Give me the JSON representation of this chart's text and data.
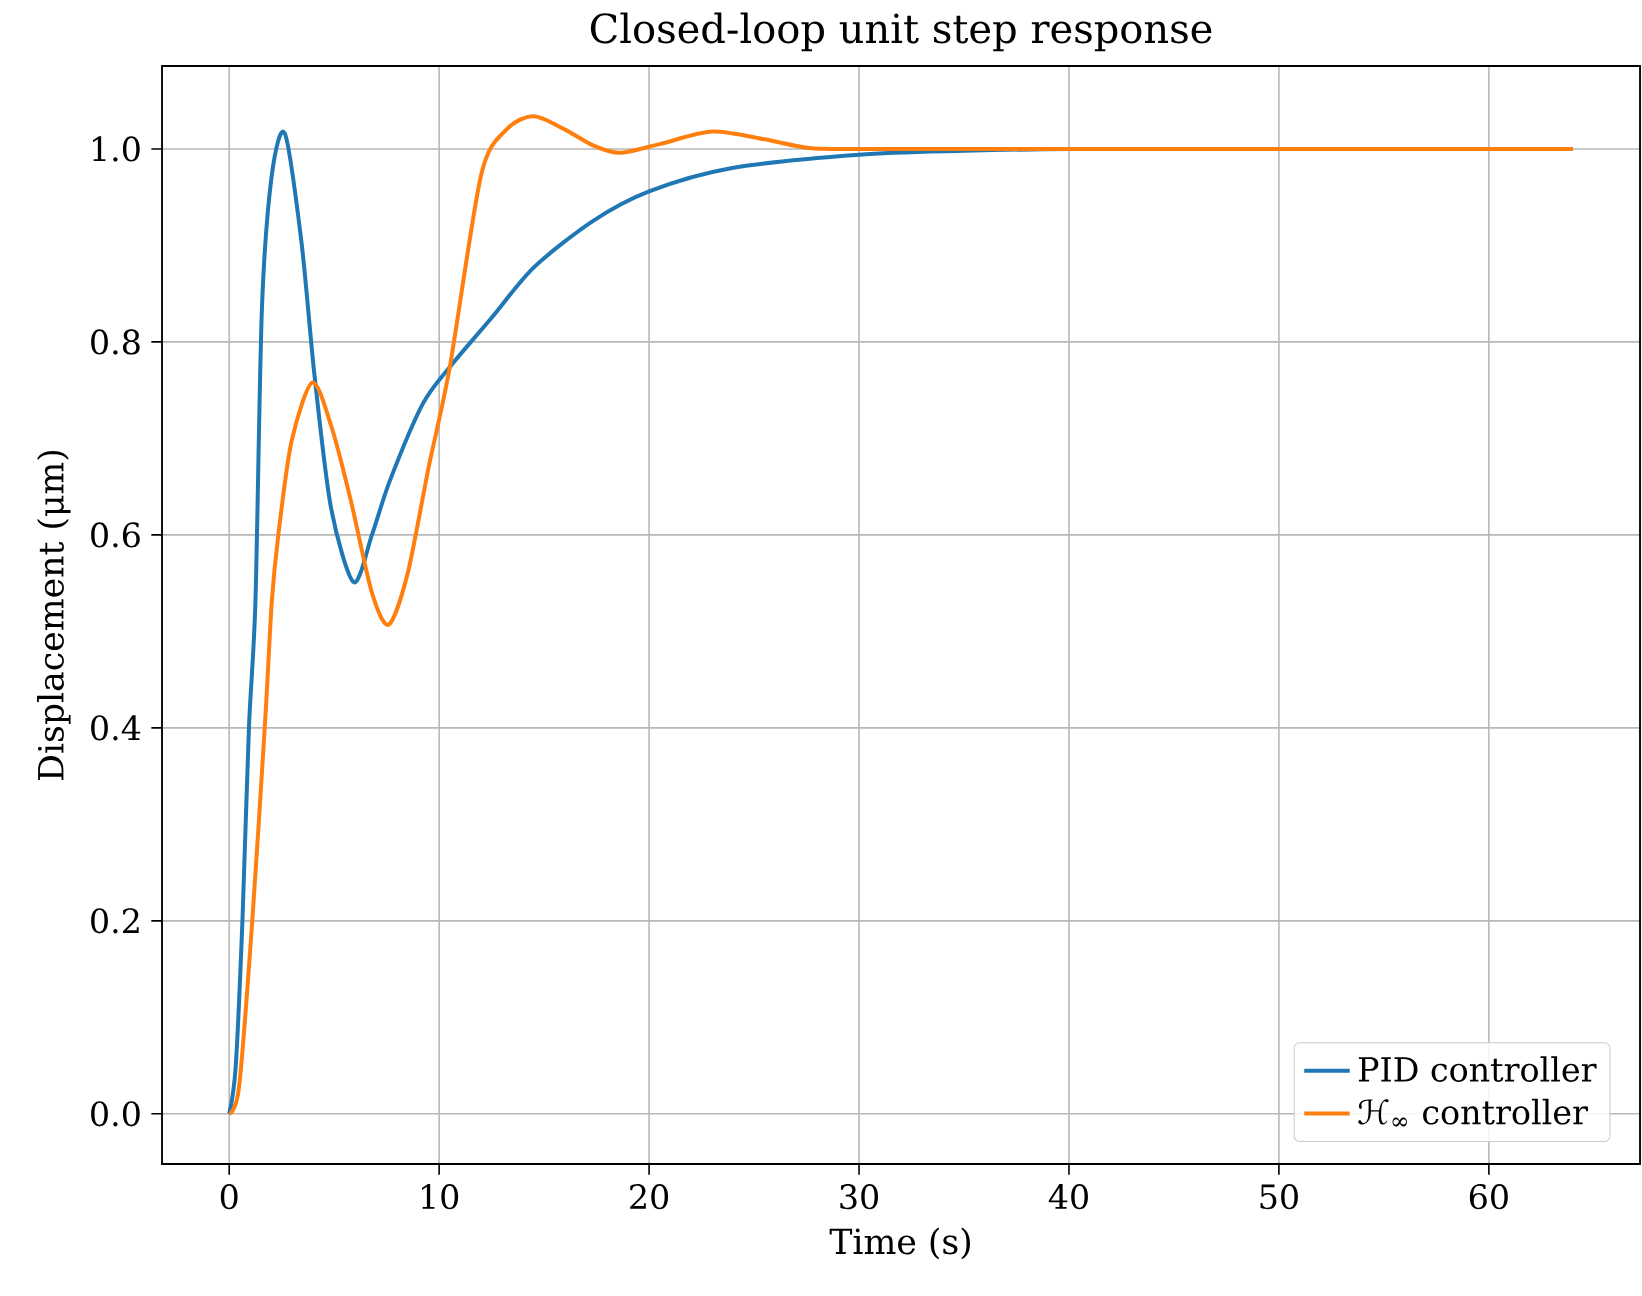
{
  "chart_data": {
    "type": "line",
    "title": "Closed-loop unit step response",
    "xlabel": "Time (s)",
    "ylabel": "Displacement (μm)",
    "xlim": [
      -3.2,
      67.2
    ],
    "ylim": [
      -0.052,
      1.086
    ],
    "xticks": [
      0,
      10,
      20,
      30,
      40,
      50,
      60
    ],
    "yticks": [
      {
        "value": 0,
        "label": "0.0"
      },
      {
        "value": 0.2,
        "label": "0.2"
      },
      {
        "value": 0.4,
        "label": "0.4"
      },
      {
        "value": 0.6,
        "label": "0.6"
      },
      {
        "value": 0.8,
        "label": "0.8"
      },
      {
        "value": 1.0,
        "label": "1.0"
      }
    ],
    "grid": true,
    "legend": "bottom right",
    "line_style": "solid",
    "series": [
      {
        "name": "PID controller",
        "color": "#1f77b4",
        "x": [
          0,
          0.31,
          0.63,
          0.94,
          1.25,
          1.56,
          2.03,
          2.65,
          3.44,
          4.06,
          4.85,
          5.93,
          6.8,
          7.65,
          9.2,
          10.47,
          12.5,
          14.5,
          17.3,
          20,
          23.9,
          30,
          35,
          40,
          50,
          64
        ],
        "values": [
          0,
          0.049,
          0.2,
          0.4,
          0.531,
          0.835,
          0.973,
          1.016,
          0.904,
          0.766,
          0.628,
          0.551,
          0.6,
          0.656,
          0.735,
          0.773,
          0.825,
          0.877,
          0.925,
          0.956,
          0.98,
          0.994,
          0.998,
          1.0,
          1.0,
          1.0
        ]
      },
      {
        "name": "ℋ$_{∞}$ controller",
        "color": "#ff7f0e",
        "x": [
          0,
          0.47,
          1.1,
          1.72,
          2.03,
          2.34,
          2.97,
          3.97,
          4.9,
          5.8,
          6.8,
          7.6,
          8.5,
          9.5,
          10.5,
          12.0,
          13.2,
          14.5,
          16,
          17.3,
          18.6,
          20.5,
          23,
          25.5,
          27.6,
          30,
          35,
          64
        ],
        "values": [
          0,
          0.028,
          0.2,
          0.41,
          0.531,
          0.6,
          0.697,
          0.758,
          0.71,
          0.635,
          0.54,
          0.507,
          0.56,
          0.67,
          0.773,
          0.973,
          1.02,
          1.034,
          1.02,
          1.004,
          0.996,
          1.005,
          1.018,
          1.01,
          1.001,
          1.0,
          1.0,
          1.0
        ]
      }
    ]
  }
}
